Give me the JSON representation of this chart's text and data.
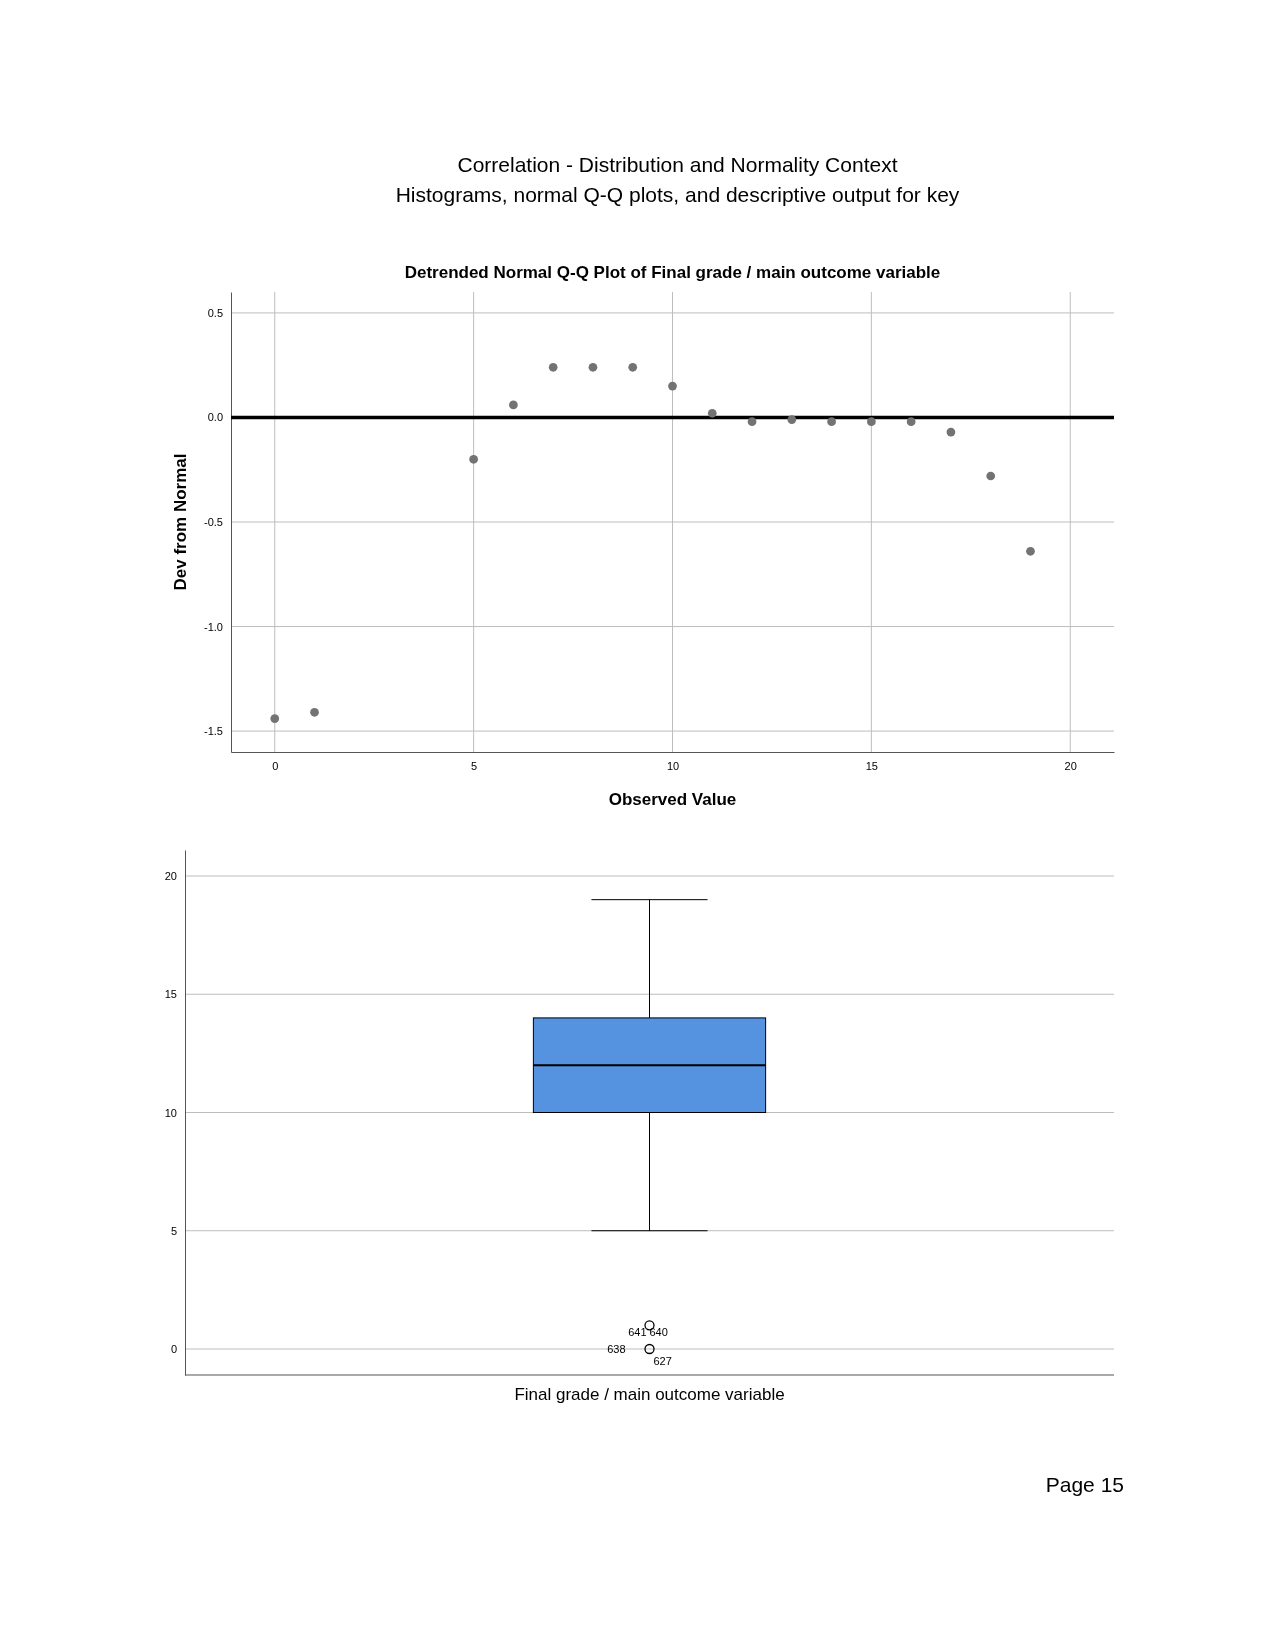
{
  "chart_data": [
    {
      "type": "scatter",
      "title": "Detrended Normal Q-Q Plot of Final grade / main outcome variable",
      "xlabel": "Observed Value",
      "ylabel": "Dev from Normal",
      "annotations": [
        "Correlation - Distribution and Normality Context",
        "Histograms, normal Q-Q plots, and descriptive output for key"
      ],
      "x": [
        0,
        1,
        5,
        6,
        7,
        8,
        9,
        10,
        11,
        12,
        13,
        14,
        15,
        16,
        17,
        18,
        19
      ],
      "values": [
        -1.44,
        -1.41,
        -0.2,
        0.06,
        0.24,
        0.24,
        0.24,
        0.15,
        0.02,
        -0.02,
        -0.01,
        -0.02,
        -0.02,
        -0.02,
        -0.07,
        -0.28,
        -0.64
      ],
      "color": "#737373",
      "marker": "circle",
      "xlim": [
        -1.1,
        21.1
      ],
      "xticks": [
        0,
        5,
        10,
        15,
        20
      ],
      "ylim": [
        -1.6,
        0.6
      ],
      "yticks": [
        {
          "value": 0.5,
          "label": "0.5"
        },
        {
          "value": 0,
          "label": "0.0"
        },
        {
          "value": -0.5,
          "label": "-0.5"
        },
        {
          "value": -1,
          "label": "-1.0"
        },
        {
          "value": -1.5,
          "label": "-1.5"
        }
      ],
      "grid": true,
      "ref_lines": [
        {
          "axis": "y",
          "value": 0,
          "color": "#000000"
        }
      ]
    },
    {
      "type": "box",
      "categories": [
        "Final grade / main outcome variable"
      ],
      "boxes": [
        {
          "low": 5,
          "q1": 10,
          "median": 12,
          "q3": 14,
          "high": 19,
          "outliers": [
            1,
            0
          ]
        }
      ],
      "color": "#5592e0",
      "ylim": [
        -1.1,
        21.1
      ],
      "yticks": [
        0,
        5,
        10,
        15,
        20
      ],
      "grid": "y",
      "annotations": [
        "640",
        "641",
        "638",
        "627",
        "Page 15"
      ]
    }
  ]
}
